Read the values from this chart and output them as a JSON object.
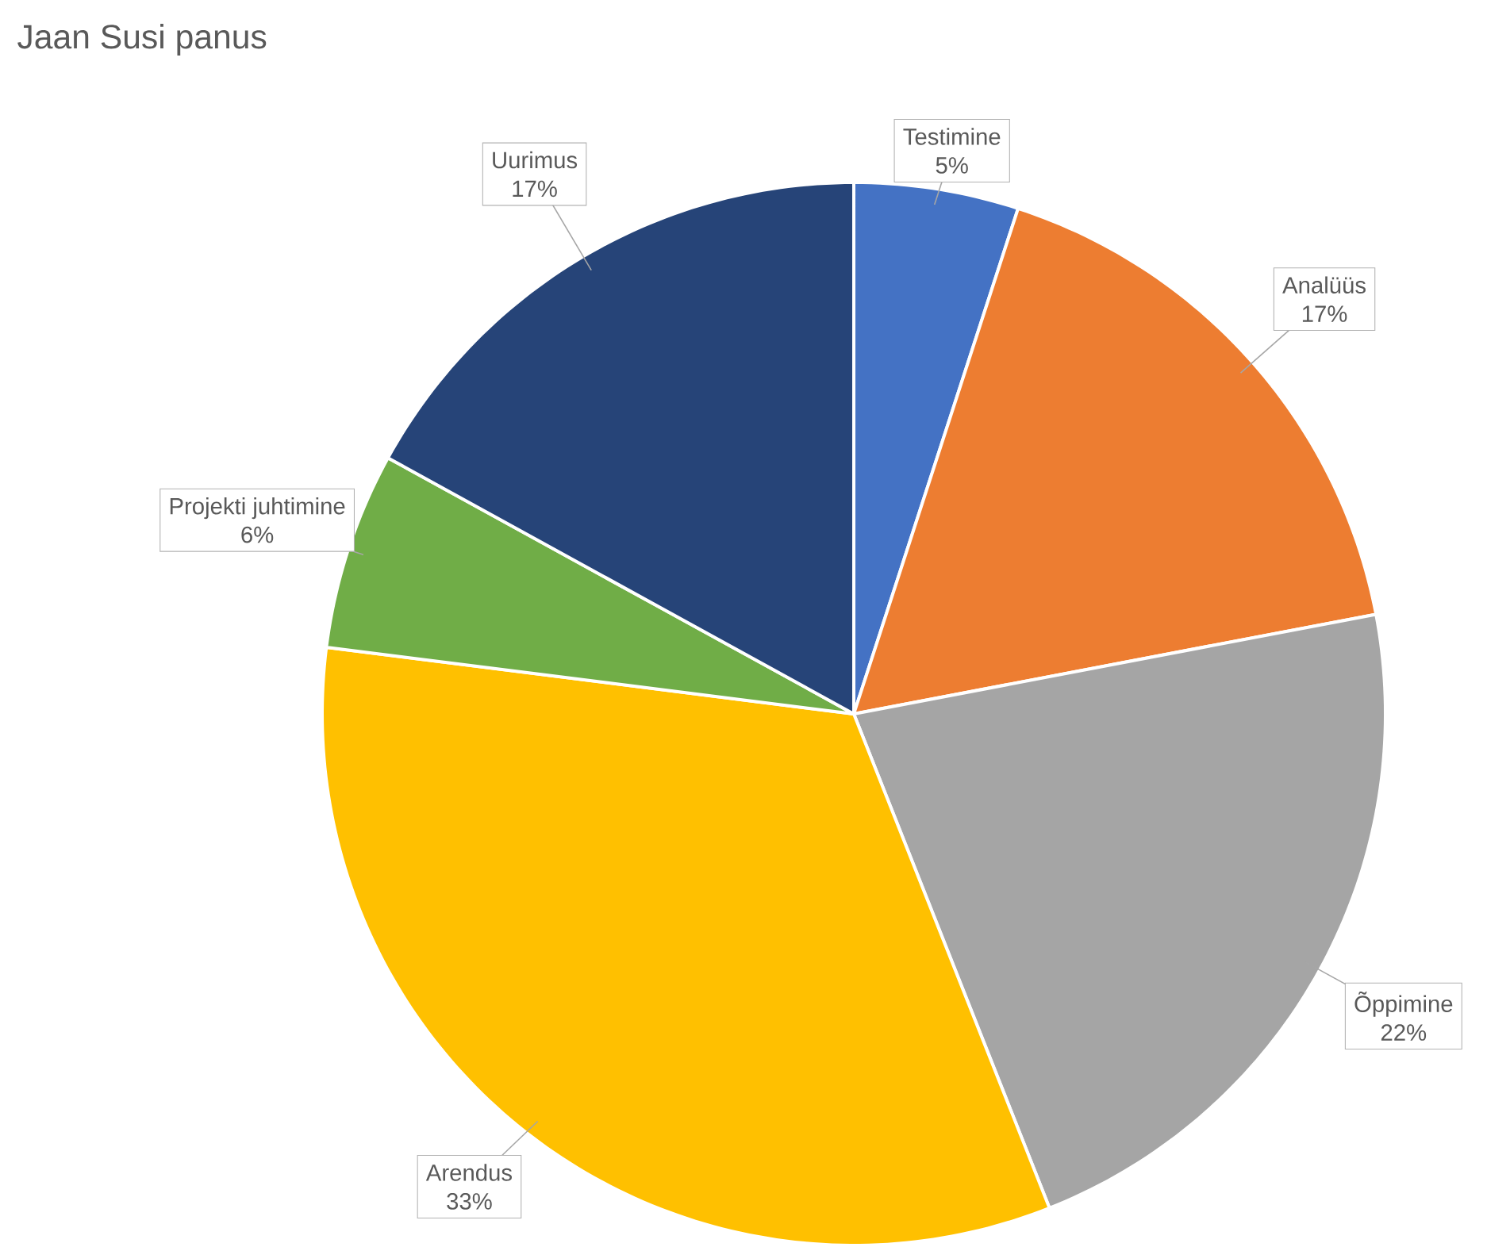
{
  "chart_data": {
    "type": "pie",
    "title": "Jaan Susi panus",
    "categories": [
      "Testimine",
      "Analüüs",
      "Õppimine",
      "Arendus",
      "Projekti juhtimine",
      "Uurimus"
    ],
    "values": [
      5,
      17,
      22,
      33,
      6,
      17
    ],
    "value_labels": [
      "5%",
      "17%",
      "22%",
      "33%",
      "6%",
      "17%"
    ],
    "colors": [
      "#4472c4",
      "#ed7d31",
      "#a5a5a5",
      "#ffc000",
      "#70ad47",
      "#264478"
    ]
  }
}
